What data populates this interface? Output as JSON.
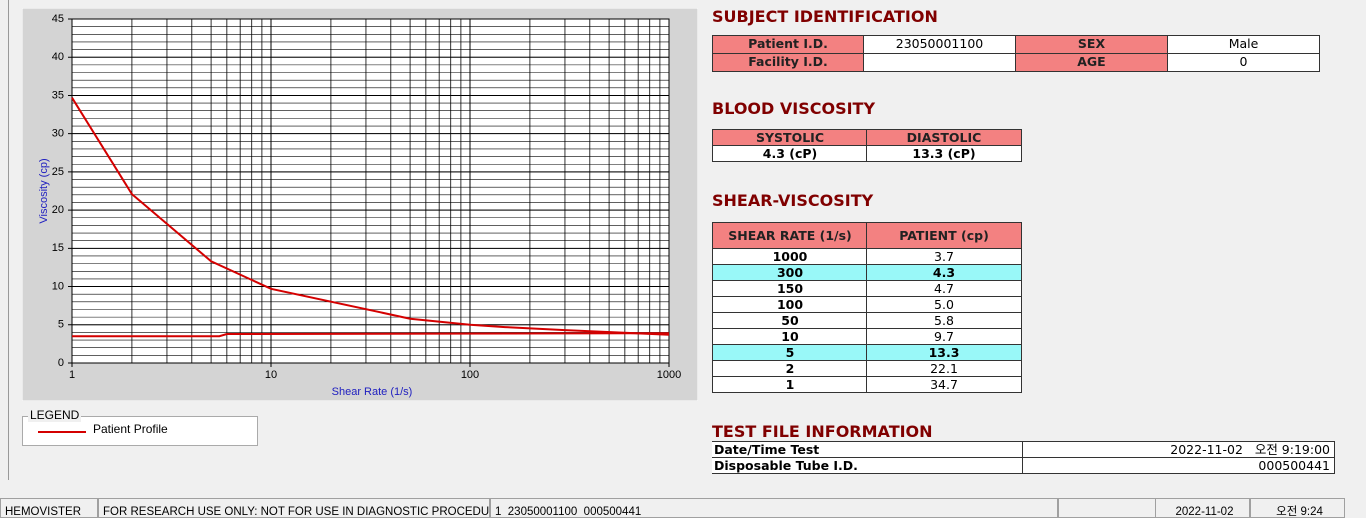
{
  "chart_data": {
    "type": "line",
    "x_label": "Shear Rate (1/s)",
    "y_label": "Viscosity (cp)",
    "log_x": true,
    "grid": true,
    "xlim": [
      1,
      1000
    ],
    "xticks": [
      1,
      10,
      100,
      1000
    ],
    "ylim": [
      0,
      45
    ],
    "yticks": [
      0,
      5,
      10,
      15,
      20,
      25,
      30,
      35,
      40,
      45
    ],
    "legend_title": "LEGEND",
    "series": [
      {
        "name": "Patient Profile",
        "color": "#d40000",
        "x": [
          1,
          2,
          5,
          10,
          50,
          100,
          150,
          300,
          1000
        ],
        "values": [
          34.7,
          22.1,
          13.3,
          9.7,
          5.8,
          5.0,
          4.7,
          4.3,
          3.7
        ]
      },
      {
        "color": "#d40000",
        "x": [
          1,
          5.5,
          6,
          1000
        ],
        "values": [
          3.5,
          3.5,
          3.8,
          3.9
        ]
      }
    ]
  },
  "subject_identification": {
    "title": "SUBJECT IDENTIFICATION",
    "rows": [
      [
        "Patient I.D.",
        "23050001100",
        "SEX",
        "Male"
      ],
      [
        "Facility I.D.",
        null,
        "AGE",
        "0"
      ]
    ]
  },
  "blood_viscosity": {
    "title": "BLOOD VISCOSITY",
    "headers": [
      "SYSTOLIC",
      "DIASTOLIC"
    ],
    "values": [
      "4.3 (cP)",
      "13.3 (cP)"
    ]
  },
  "shear_viscosity": {
    "title": "SHEAR-VISCOSITY",
    "headers": [
      "SHEAR RATE (1/s)",
      "PATIENT (cp)"
    ],
    "rows": [
      [
        "1000",
        "3.7"
      ],
      [
        "300",
        "4.3"
      ],
      [
        "150",
        "4.7"
      ],
      [
        "100",
        "5.0"
      ],
      [
        "50",
        "5.8"
      ],
      [
        "10",
        "9.7"
      ],
      [
        "5",
        "13.3"
      ],
      [
        "2",
        "22.1"
      ],
      [
        "1",
        "34.7"
      ]
    ]
  },
  "test_file_information": {
    "title": "TEST FILE INFORMATION",
    "rows": [
      [
        "Date/Time Test",
        "2022-11-02   오전 9:19:00"
      ],
      [
        "Disposable Tube I.D.",
        "000500441"
      ]
    ]
  },
  "status_bar": [
    "HEMOVISTER",
    "FOR RESEARCH USE ONLY: NOT FOR USE IN DIAGNOSTIC PROCEDURES",
    "1  23050001100  000500441",
    "2022-11-02",
    "오전 9:24"
  ]
}
